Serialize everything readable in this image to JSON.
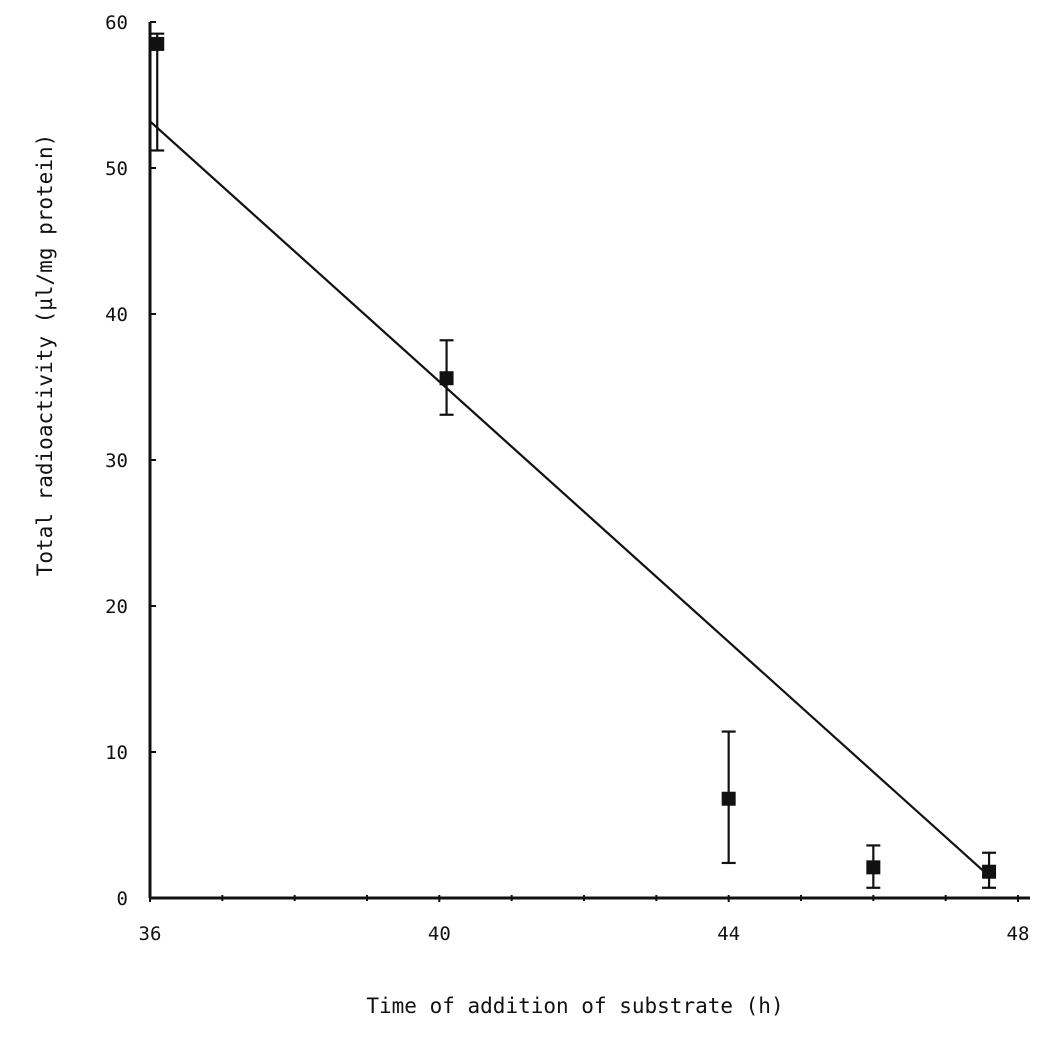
{
  "chart_data": {
    "type": "scatter",
    "title": "",
    "xlabel": "Time of addition of substrate (h)",
    "ylabel": "Total radioactivity (µl/mg protein)",
    "xlim": [
      36,
      48
    ],
    "ylim": [
      0,
      60
    ],
    "x_ticks": [
      36,
      40,
      44,
      48
    ],
    "x_tick_labels": [
      "36",
      "40",
      "44",
      "48"
    ],
    "x_minor_ticks": [
      37,
      38,
      39,
      41,
      42,
      43,
      45,
      46,
      47
    ],
    "y_ticks": [
      0,
      10,
      20,
      30,
      40,
      50,
      60
    ],
    "y_tick_labels": [
      "0",
      "10",
      "20",
      "30",
      "40",
      "50",
      "60"
    ],
    "grid": false,
    "marker": "square",
    "color": "#111111",
    "points": [
      {
        "x": 36.1,
        "y": 58.5,
        "err_low": 51.2,
        "err_high": 59.2
      },
      {
        "x": 40.1,
        "y": 35.6,
        "err_low": 33.1,
        "err_high": 38.2
      },
      {
        "x": 44.0,
        "y": 6.8,
        "err_low": 2.4,
        "err_high": 11.4
      },
      {
        "x": 46.0,
        "y": 2.1,
        "err_low": 0.7,
        "err_high": 3.6
      },
      {
        "x": 47.6,
        "y": 1.8,
        "err_low": 0.7,
        "err_high": 3.1
      }
    ],
    "fit_line": {
      "x": [
        36.0,
        47.6
      ],
      "y": [
        53.2,
        1.5
      ]
    }
  }
}
